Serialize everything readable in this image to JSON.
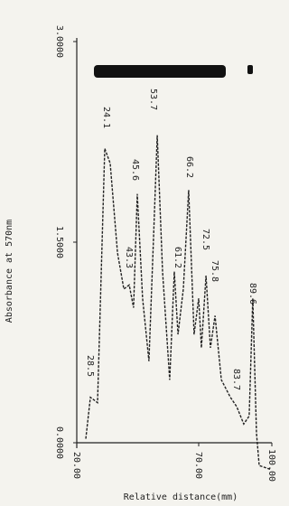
{
  "chart_data": {
    "type": "line",
    "x_label": "Relative distance(mm)",
    "y_label": "Absorbance at 570nm",
    "xlim": [
      20,
      100
    ],
    "ylim": [
      0,
      3
    ],
    "xticks": [
      {
        "value": 20,
        "label": "20.00"
      },
      {
        "value": 70,
        "label": "70.00"
      },
      {
        "value": 100,
        "label": "100.00"
      }
    ],
    "yticks": [
      {
        "value": 0,
        "label": "0.0000"
      },
      {
        "value": 1.5,
        "label": "1.5000"
      },
      {
        "value": 3,
        "label": "3.0000"
      }
    ],
    "series": [
      {
        "color": "#222222",
        "x": [
          23.7,
          25.6,
          28.5,
          31.5,
          33.7,
          36.7,
          39.3,
          41.5,
          43.3,
          44.8,
          47.0,
          49.6,
          51.5,
          53.0,
          55.2,
          58.1,
          60.0,
          61.5,
          63.7,
          65.9,
          68.1,
          70.0,
          71.1,
          73.0,
          74.8,
          76.7,
          79.3,
          83.0,
          85.6,
          88.5,
          90.7,
          92.2,
          93.7,
          94.8,
          99.6
        ],
        "values": [
          0.03,
          0.34,
          0.3,
          2.2,
          2.09,
          1.42,
          1.15,
          1.18,
          1.01,
          1.86,
          1.08,
          0.61,
          1.55,
          2.3,
          1.28,
          0.47,
          1.28,
          0.81,
          1.15,
          1.89,
          0.81,
          1.08,
          0.71,
          1.25,
          0.71,
          0.95,
          0.47,
          0.34,
          0.27,
          0.14,
          0.2,
          1.08,
          0.07,
          -0.17,
          -0.2
        ]
      }
    ],
    "annotations": [
      "24.1",
      "28.5",
      "43.3",
      "45.6",
      "53.7",
      "61.2",
      "66.2",
      "72.5",
      "75.8",
      "83.7",
      "89.6"
    ]
  }
}
